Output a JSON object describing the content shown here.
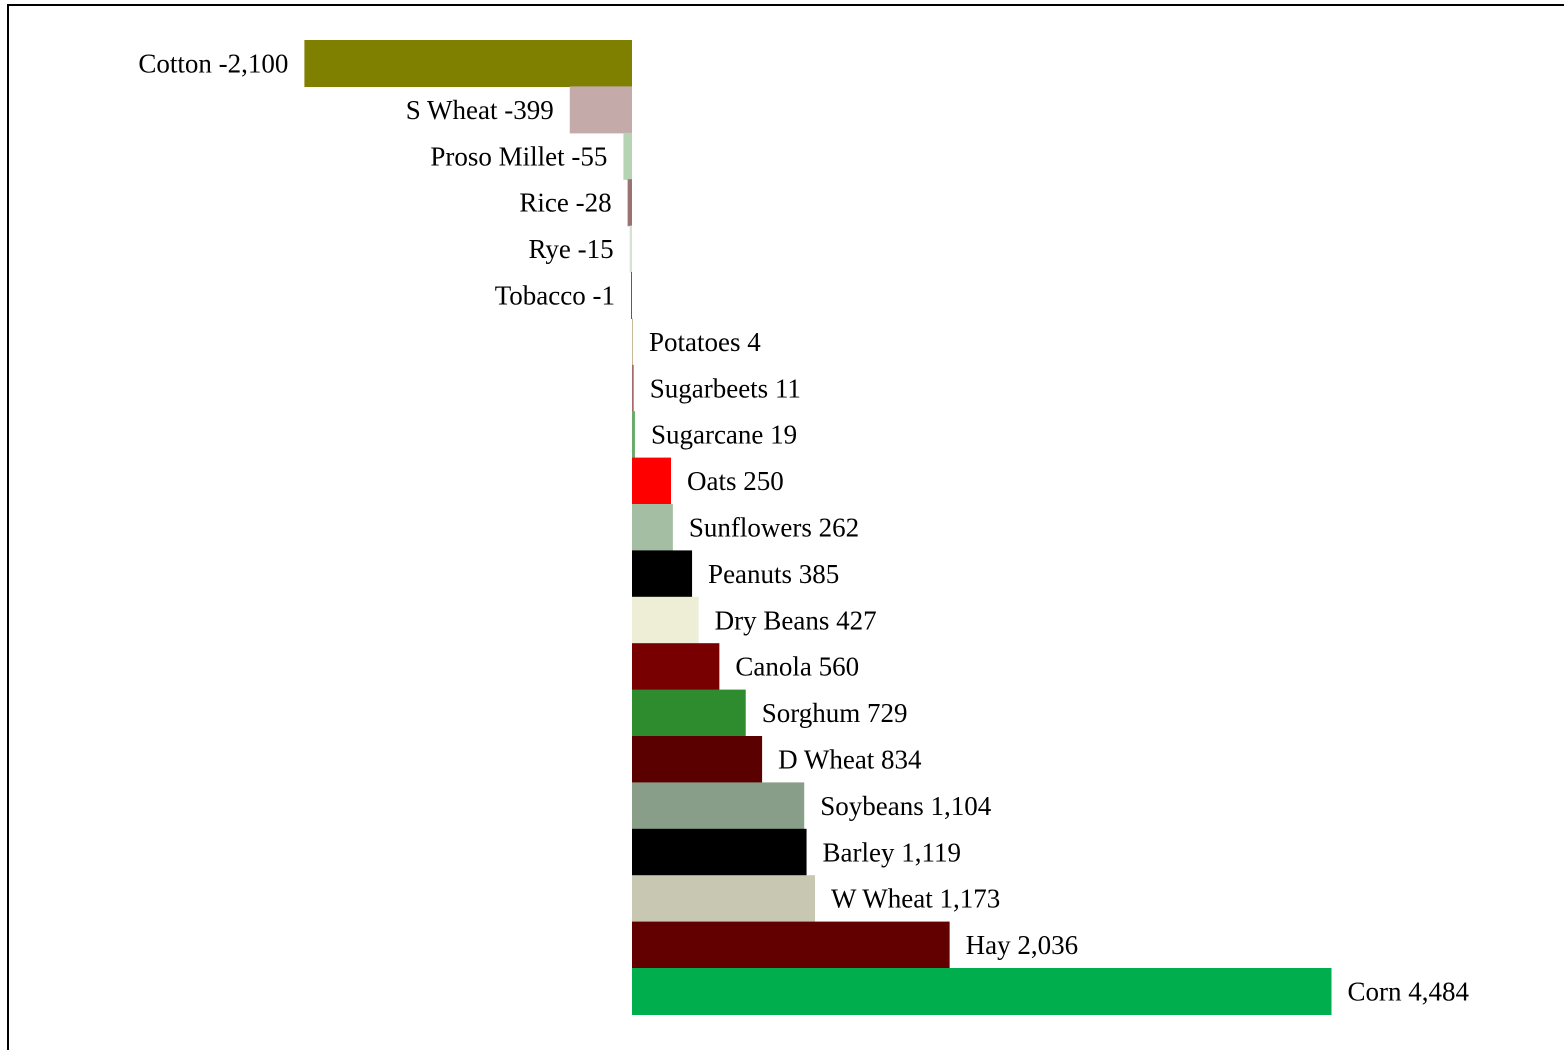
{
  "chart_data": {
    "type": "bar",
    "orientation": "horizontal",
    "title": "",
    "xlabel": "",
    "ylabel": "",
    "grid": false,
    "xlim": [
      -2100,
      4484
    ],
    "bars": [
      {
        "category": "Cotton",
        "value": -2100,
        "label": "Cotton -2,100",
        "color": "#808000"
      },
      {
        "category": "S Wheat",
        "value": -399,
        "label": "S Wheat -399",
        "color": "#c4aaa8"
      },
      {
        "category": "Proso Millet",
        "value": -55,
        "label": "Proso Millet -55",
        "color": "#b4d4b4"
      },
      {
        "category": "Rice",
        "value": -28,
        "label": "Rice -28",
        "color": "#9a7272"
      },
      {
        "category": "Rye",
        "value": -15,
        "label": "Rye -15",
        "color": "#d4e4d4"
      },
      {
        "category": "Tobacco",
        "value": -1,
        "label": "Tobacco -1",
        "color": "#6e5a3a"
      },
      {
        "category": "Potatoes",
        "value": 4,
        "label": "Potatoes 4",
        "color": "#c8b89a"
      },
      {
        "category": "Sugarbeets",
        "value": 11,
        "label": "Sugarbeets 11",
        "color": "#a86a6a"
      },
      {
        "category": "Sugarcane",
        "value": 19,
        "label": "Sugarcane 19",
        "color": "#6aaa6a"
      },
      {
        "category": "Oats",
        "value": 250,
        "label": "Oats 250",
        "color": "#ff0000"
      },
      {
        "category": "Sunflowers",
        "value": 262,
        "label": "Sunflowers 262",
        "color": "#a4bea4"
      },
      {
        "category": "Peanuts",
        "value": 385,
        "label": "Peanuts 385",
        "color": "#000000"
      },
      {
        "category": "Dry Beans",
        "value": 427,
        "label": "Dry Beans 427",
        "color": "#eeeed6"
      },
      {
        "category": "Canola",
        "value": 560,
        "label": "Canola 560",
        "color": "#780000"
      },
      {
        "category": "Sorghum",
        "value": 729,
        "label": "Sorghum 729",
        "color": "#2e8b2e"
      },
      {
        "category": "D Wheat",
        "value": 834,
        "label": "D Wheat 834",
        "color": "#5a0000"
      },
      {
        "category": "Soybeans",
        "value": 1104,
        "label": "Soybeans 1,104",
        "color": "#889e88"
      },
      {
        "category": "Barley",
        "value": 1119,
        "label": "Barley 1,119",
        "color": "#000000"
      },
      {
        "category": "W Wheat",
        "value": 1173,
        "label": "W Wheat 1,173",
        "color": "#c8c8b2"
      },
      {
        "category": "Hay",
        "value": 2036,
        "label": "Hay 2,036",
        "color": "#620000"
      },
      {
        "category": "Corn",
        "value": 4484,
        "label": "Corn 4,484",
        "color": "#00ae4e"
      }
    ]
  }
}
